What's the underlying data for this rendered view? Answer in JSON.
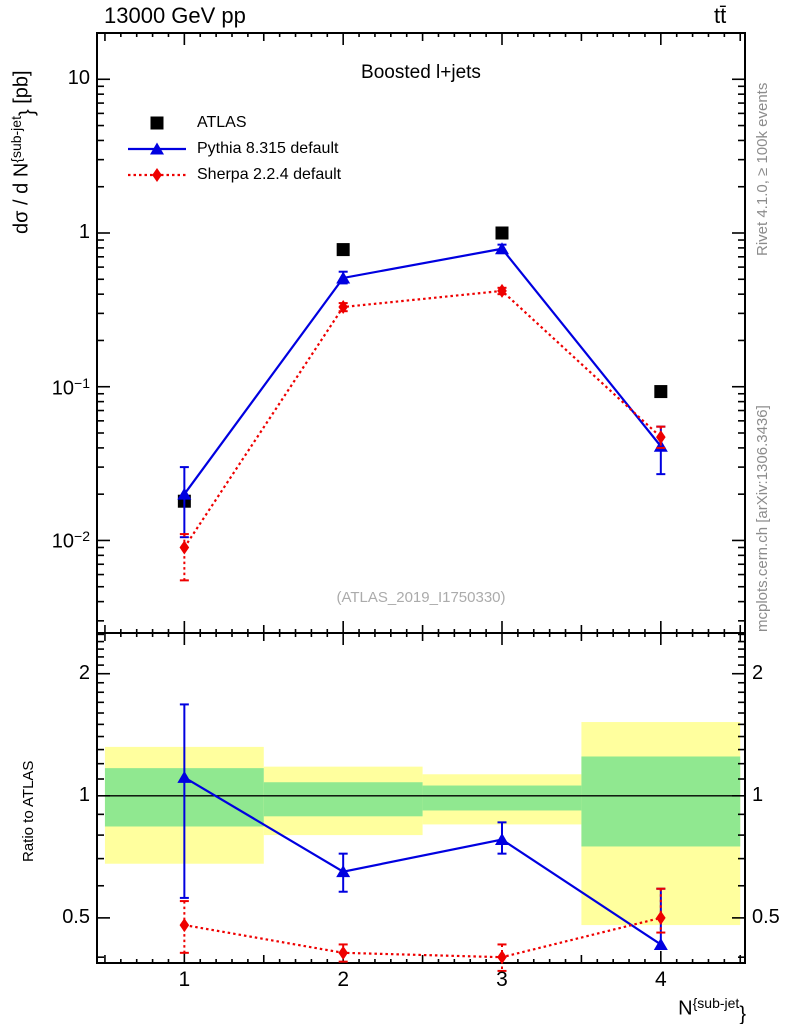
{
  "header": {
    "left": "13000 GeV pp",
    "right": "tt̄"
  },
  "panel_title": "Boosted l+jets",
  "watermark": "(ATLAS_2019_I1750330)",
  "side_notes": {
    "top": "Rivet 4.1.0, ≥ 100k events",
    "bottom": "mcplots.cern.ch [arXiv:1306.3436]"
  },
  "colors": {
    "atlas_black": "#000000",
    "pythia_blue": "#0000e0",
    "sherpa_red": "#ee0000",
    "band_yellow": "#ffff9e",
    "band_green": "#90e890",
    "note_gray": "#8c8c8c",
    "watermark_gray": "#ababab"
  },
  "legend": [
    {
      "label": "ATLAS",
      "marker": "square",
      "line": "none",
      "color": "#000000"
    },
    {
      "label": "Pythia 8.315 default",
      "marker": "triangle",
      "line": "solid",
      "color": "#0000e0"
    },
    {
      "label": "Sherpa 2.2.4 default",
      "marker": "diamond",
      "line": "dotted",
      "color": "#ee0000"
    }
  ],
  "axes": {
    "ylabel_main": {
      "pre": "dσ / d N",
      "sup": "{sub-jet",
      "brace": "}",
      "post": " [pb]"
    },
    "ylabel_ratio": "Ratio to ATLAS",
    "xlabel": {
      "base": "N",
      "sup": "{sub-jet",
      "brace": "}"
    },
    "main_yticks": [
      {
        "v": 10,
        "base": "10",
        "exp": ""
      },
      {
        "v": 1,
        "base": "1",
        "exp": ""
      },
      {
        "v": 0.1,
        "base": "10",
        "exp": "−1"
      },
      {
        "v": 0.01,
        "base": "10",
        "exp": "−2"
      }
    ],
    "ratio_yticks": [
      {
        "v": 2,
        "label": "2"
      },
      {
        "v": 1,
        "label": "1"
      },
      {
        "v": 0.5,
        "label": "0.5"
      }
    ],
    "xticks": [
      {
        "v": 1,
        "label": "1"
      },
      {
        "v": 2,
        "label": "2"
      },
      {
        "v": 3,
        "label": "3"
      },
      {
        "v": 4,
        "label": "4"
      }
    ]
  },
  "chart_data": [
    {
      "type": "line",
      "panel": "main",
      "title": "Boosted l+jets",
      "ylabel": "dσ / d N^{sub-jet} [pb]",
      "xlabel": "N^{sub-jet}",
      "x": [
        1,
        2,
        3,
        4
      ],
      "xlim": [
        0.45,
        4.53
      ],
      "ylim": [
        0.0025,
        20
      ],
      "yscale": "log",
      "series": [
        {
          "name": "ATLAS",
          "marker": "square",
          "line": "none",
          "color": "#000000",
          "values": [
            0.018,
            0.78,
            1.0,
            0.093
          ],
          "err_lo": null,
          "err_hi": null
        },
        {
          "name": "Pythia 8.315 default",
          "marker": "triangle",
          "line": "solid",
          "color": "#0000e0",
          "values": [
            0.02,
            0.51,
            0.79,
            0.041
          ],
          "err_lo": [
            0.0105,
            0.47,
            0.74,
            0.027
          ],
          "err_hi": [
            0.03,
            0.56,
            0.84,
            0.055
          ]
        },
        {
          "name": "Sherpa 2.2.4 default",
          "marker": "diamond",
          "line": "dotted",
          "color": "#ee0000",
          "values": [
            0.009,
            0.33,
            0.42,
            0.047
          ],
          "err_lo": [
            0.0055,
            0.31,
            0.4,
            0.04
          ],
          "err_hi": [
            0.011,
            0.35,
            0.44,
            0.055
          ]
        }
      ]
    },
    {
      "type": "line",
      "panel": "ratio",
      "ylabel": "Ratio to ATLAS",
      "x": [
        1,
        2,
        3,
        4
      ],
      "xlim": [
        0.45,
        4.53
      ],
      "ylim": [
        0.387,
        2.52
      ],
      "yscale": "log",
      "reference_line": 1,
      "bands": {
        "bin_edges": [
          0.5,
          1.5,
          2.5,
          3.5,
          4.5
        ],
        "yellow": [
          [
            0.68,
            1.32
          ],
          [
            0.8,
            1.18
          ],
          [
            0.85,
            1.13
          ],
          [
            0.48,
            1.52
          ]
        ],
        "green": [
          [
            0.84,
            1.17
          ],
          [
            0.89,
            1.08
          ],
          [
            0.92,
            1.06
          ],
          [
            0.75,
            1.25
          ]
        ]
      },
      "series": [
        {
          "name": "Pythia 8.315 default",
          "marker": "triangle",
          "line": "solid",
          "color": "#0000e0",
          "values": [
            1.11,
            0.65,
            0.78,
            0.43
          ],
          "err_lo": [
            0.56,
            0.58,
            0.72,
            0.42
          ],
          "err_hi": [
            1.68,
            0.72,
            0.86,
            0.59
          ]
        },
        {
          "name": "Sherpa 2.2.4 default",
          "marker": "diamond",
          "line": "dotted",
          "color": "#ee0000",
          "values": [
            0.48,
            0.41,
            0.4,
            0.5
          ],
          "err_lo": [
            0.41,
            0.39,
            0.37,
            0.46
          ],
          "err_hi": [
            0.55,
            0.43,
            0.43,
            0.59
          ]
        }
      ]
    }
  ]
}
